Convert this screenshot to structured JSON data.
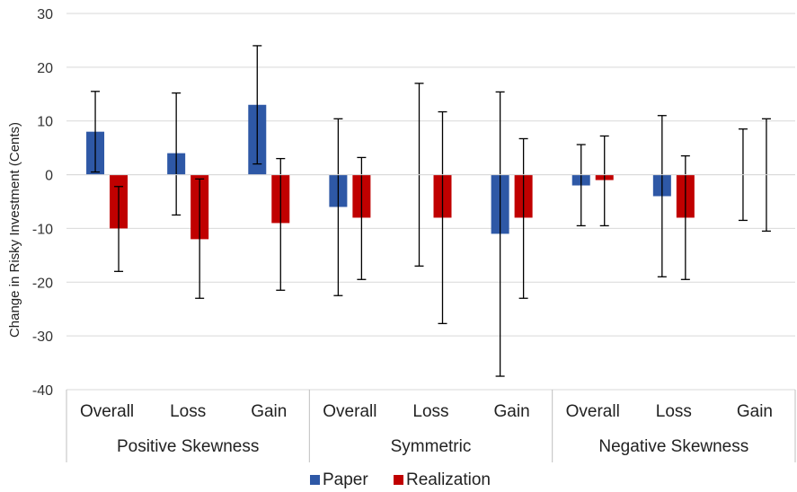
{
  "chart_data": {
    "type": "bar",
    "ylabel": "Change in Risky Investment  (Cents)",
    "ylim": [
      -40,
      30
    ],
    "yticks": [
      -40,
      -30,
      -20,
      -10,
      0,
      10,
      20,
      30
    ],
    "grid": true,
    "legend_position": "bottom",
    "groups": [
      "Positive Skewness",
      "Symmetric",
      "Negative Skewness"
    ],
    "categories": [
      "Overall",
      "Loss",
      "Gain",
      "Overall",
      "Loss",
      "Gain",
      "Overall",
      "Loss",
      "Gain"
    ],
    "series": [
      {
        "name": "Paper",
        "color": "#2E58A6",
        "values": [
          8,
          4,
          13,
          -6,
          0,
          -11,
          -2,
          -4,
          0
        ],
        "err_low": [
          0.5,
          -7.5,
          2,
          -22.5,
          -17,
          -37.5,
          -9.5,
          -19,
          -8.5
        ],
        "err_high": [
          15.5,
          15.2,
          24,
          10.4,
          17,
          15.4,
          5.6,
          11,
          8.5
        ]
      },
      {
        "name": "Realization",
        "color": "#C00000",
        "values": [
          -10,
          -12,
          -9,
          -8,
          -8,
          -8,
          -1,
          -8,
          0
        ],
        "err_low": [
          -18,
          -23,
          -21.5,
          -19.5,
          -27.7,
          -23,
          -9.5,
          -19.5,
          -10.5
        ],
        "err_high": [
          -2.2,
          -0.8,
          3,
          3.2,
          11.7,
          6.7,
          7.2,
          3.5,
          10.4
        ]
      }
    ]
  }
}
